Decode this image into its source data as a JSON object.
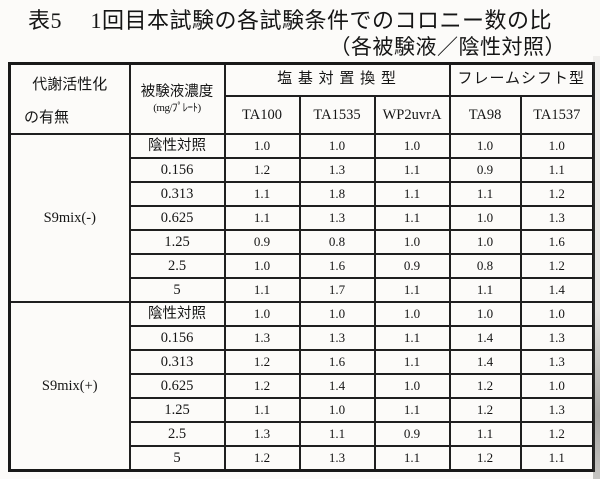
{
  "colors": {
    "paper": "#fcfbf9",
    "ink": "#151515",
    "border": "#1f1f1f"
  },
  "title": {
    "line1": "表5　 1回目本試験の各試験条件でのコロニー数の比",
    "line2": "（各被験液／陰性対照）"
  },
  "table": {
    "header": {
      "metabolic_activation_line1": "代謝活性化",
      "metabolic_activation_line2": "の有無",
      "dose_line1": "被験液濃度",
      "dose_line2": "(mg/ﾌﾟﾚｰﾄ)",
      "group_base_substitution": "塩 基 対 置 換 型",
      "group_frameshift": "フレームシフト型",
      "strains": [
        "TA100",
        "TA1535",
        "WP2uvrA",
        "TA98",
        "TA1537"
      ]
    },
    "sections": [
      {
        "label": "S9mix(-)",
        "rows": [
          {
            "dose": "陰性対照",
            "values": [
              "1.0",
              "1.0",
              "1.0",
              "1.0",
              "1.0"
            ]
          },
          {
            "dose": "0.156",
            "values": [
              "1.2",
              "1.3",
              "1.1",
              "0.9",
              "1.1"
            ]
          },
          {
            "dose": "0.313",
            "values": [
              "1.1",
              "1.8",
              "1.1",
              "1.1",
              "1.2"
            ]
          },
          {
            "dose": "0.625",
            "values": [
              "1.1",
              "1.3",
              "1.1",
              "1.0",
              "1.3"
            ]
          },
          {
            "dose": "1.25",
            "values": [
              "0.9",
              "0.8",
              "1.0",
              "1.0",
              "1.6"
            ]
          },
          {
            "dose": "2.5",
            "values": [
              "1.0",
              "1.6",
              "0.9",
              "0.8",
              "1.2"
            ]
          },
          {
            "dose": "5",
            "values": [
              "1.1",
              "1.7",
              "1.1",
              "1.1",
              "1.4"
            ]
          }
        ]
      },
      {
        "label": "S9mix(+)",
        "rows": [
          {
            "dose": "陰性対照",
            "values": [
              "1.0",
              "1.0",
              "1.0",
              "1.0",
              "1.0"
            ]
          },
          {
            "dose": "0.156",
            "values": [
              "1.3",
              "1.3",
              "1.1",
              "1.4",
              "1.3"
            ]
          },
          {
            "dose": "0.313",
            "values": [
              "1.2",
              "1.6",
              "1.1",
              "1.4",
              "1.3"
            ]
          },
          {
            "dose": "0.625",
            "values": [
              "1.2",
              "1.4",
              "1.0",
              "1.2",
              "1.0"
            ]
          },
          {
            "dose": "1.25",
            "values": [
              "1.1",
              "1.0",
              "1.1",
              "1.2",
              "1.3"
            ]
          },
          {
            "dose": "2.5",
            "values": [
              "1.3",
              "1.1",
              "0.9",
              "1.1",
              "1.2"
            ]
          },
          {
            "dose": "5",
            "values": [
              "1.2",
              "1.3",
              "1.1",
              "1.2",
              "1.1"
            ]
          }
        ]
      }
    ]
  }
}
